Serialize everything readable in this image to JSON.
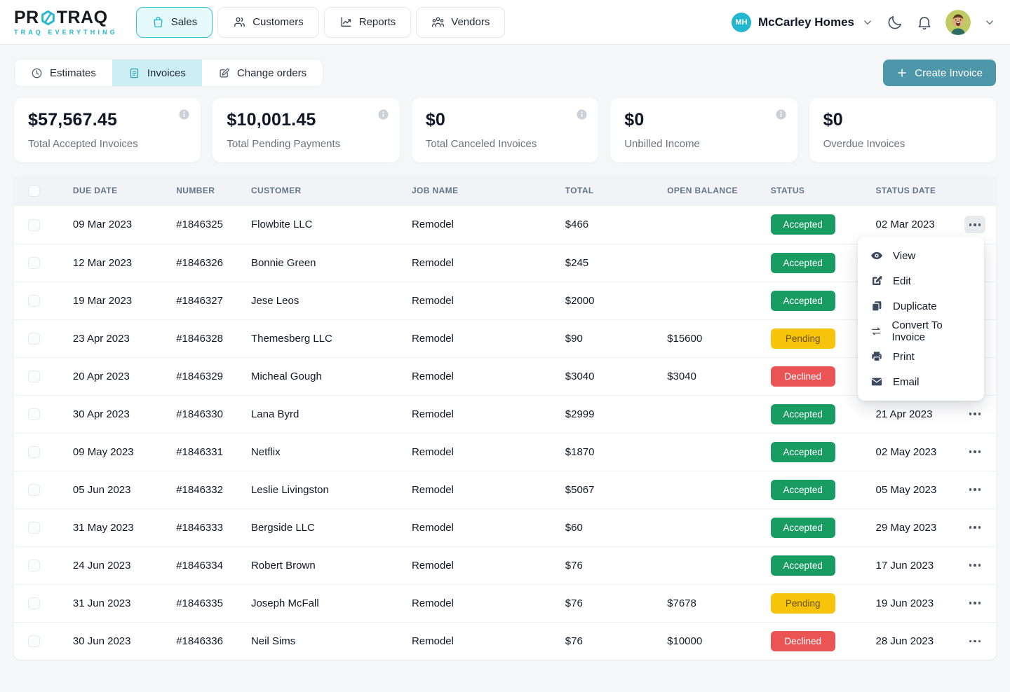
{
  "brand": {
    "name_left": "PR",
    "name_right": "TRAQ",
    "tagline": "TRAQ EVERYTHING"
  },
  "nav": {
    "tabs": [
      {
        "label": "Sales",
        "icon": "bag",
        "active": true
      },
      {
        "label": "Customers",
        "icon": "users",
        "active": false
      },
      {
        "label": "Reports",
        "icon": "chart",
        "active": false
      },
      {
        "label": "Vendors",
        "icon": "users-group",
        "active": false
      }
    ],
    "account_initials": "MH",
    "account_name": "McCarley Homes"
  },
  "subnav": {
    "tabs": [
      {
        "label": "Estimates",
        "icon": "clock",
        "active": false
      },
      {
        "label": "Invoices",
        "icon": "document",
        "active": true
      },
      {
        "label": "Change orders",
        "icon": "edit-square",
        "active": false
      }
    ],
    "create_button": "Create Invoice"
  },
  "summary_cards": [
    {
      "value": "$57,567.45",
      "label": "Total Accepted Invoices",
      "info": true
    },
    {
      "value": "$10,001.45",
      "label": "Total Pending Payments",
      "info": true
    },
    {
      "value": "$0",
      "label": "Total Canceled Invoices",
      "info": true
    },
    {
      "value": "$0",
      "label": "Unbilled Income",
      "info": true
    },
    {
      "value": "$0",
      "label": "Overdue Invoices",
      "info": false
    }
  ],
  "table": {
    "headers": [
      "DUE DATE",
      "NUMBER",
      "CUSTOMER",
      "JOB NAME",
      "TOTAL",
      "OPEN BALANCE",
      "STATUS",
      "STATUS DATE"
    ],
    "rows": [
      {
        "due_date": "09 Mar 2023",
        "number": "#1846325",
        "customer": "Flowbite LLC",
        "job_name": "Remodel",
        "total": "$466",
        "open_balance": "",
        "status": "Accepted",
        "status_date": "02 Mar 2023",
        "menu_open": true
      },
      {
        "due_date": "12 Mar 2023",
        "number": "#1846326",
        "customer": "Bonnie Green",
        "job_name": "Remodel",
        "total": "$245",
        "open_balance": "",
        "status": "Accepted",
        "status_date": "",
        "menu_open": false
      },
      {
        "due_date": "19 Mar 2023",
        "number": "#1846327",
        "customer": "Jese Leos",
        "job_name": "Remodel",
        "total": "$2000",
        "open_balance": "",
        "status": "Accepted",
        "status_date": "",
        "menu_open": false
      },
      {
        "due_date": "23 Apr 2023",
        "number": "#1846328",
        "customer": "Themesberg LLC",
        "job_name": "Remodel",
        "total": "$90",
        "open_balance": "$15600",
        "status": "Pending",
        "status_date": "",
        "menu_open": false
      },
      {
        "due_date": "20 Apr 2023",
        "number": "#1846329",
        "customer": "Micheal Gough",
        "job_name": "Remodel",
        "total": "$3040",
        "open_balance": "$3040",
        "status": "Declined",
        "status_date": "",
        "menu_open": false
      },
      {
        "due_date": "30 Apr 2023",
        "number": "#1846330",
        "customer": "Lana Byrd",
        "job_name": "Remodel",
        "total": "$2999",
        "open_balance": "",
        "status": "Accepted",
        "status_date": "21 Apr 2023",
        "menu_open": false
      },
      {
        "due_date": "09 May 2023",
        "number": "#1846331",
        "customer": "Netflix",
        "job_name": "Remodel",
        "total": "$1870",
        "open_balance": "",
        "status": "Accepted",
        "status_date": "02 May 2023",
        "menu_open": false
      },
      {
        "due_date": "05 Jun 2023",
        "number": "#1846332",
        "customer": "Leslie Livingston",
        "job_name": "Remodel",
        "total": "$5067",
        "open_balance": "",
        "status": "Accepted",
        "status_date": "05 May 2023",
        "menu_open": false
      },
      {
        "due_date": "31 May 2023",
        "number": "#1846333",
        "customer": "Bergside LLC",
        "job_name": "Remodel",
        "total": "$60",
        "open_balance": "",
        "status": "Accepted",
        "status_date": "29 May 2023",
        "menu_open": false
      },
      {
        "due_date": "24 Jun 2023",
        "number": "#1846334",
        "customer": "Robert Brown",
        "job_name": "Remodel",
        "total": "$76",
        "open_balance": "",
        "status": "Accepted",
        "status_date": "17 Jun 2023",
        "menu_open": false
      },
      {
        "due_date": "31 Jun 2023",
        "number": "#1846335",
        "customer": "Joseph McFall",
        "job_name": "Remodel",
        "total": "$76",
        "open_balance": "$7678",
        "status": "Pending",
        "status_date": "19 Jun 2023",
        "menu_open": false
      },
      {
        "due_date": "30 Jun 2023",
        "number": "#1846336",
        "customer": "Neil Sims",
        "job_name": "Remodel",
        "total": "$76",
        "open_balance": "$10000",
        "status": "Declined",
        "status_date": "28 Jun 2023",
        "menu_open": false
      }
    ]
  },
  "context_menu": {
    "items": [
      {
        "label": "View",
        "icon": "eye"
      },
      {
        "label": "Edit",
        "icon": "pencil-square"
      },
      {
        "label": "Duplicate",
        "icon": "duplicate"
      },
      {
        "label": "Convert To Invoice",
        "icon": "convert-arrows"
      },
      {
        "label": "Print",
        "icon": "printer"
      },
      {
        "label": "Email",
        "icon": "envelope"
      }
    ]
  },
  "colors": {
    "accent_teal": "#23b7cf",
    "button_teal": "#4e97aa",
    "accepted": "#189c62",
    "pending": "#f6c50b",
    "pending_text": "#6b4e09",
    "declined": "#ea5455"
  }
}
